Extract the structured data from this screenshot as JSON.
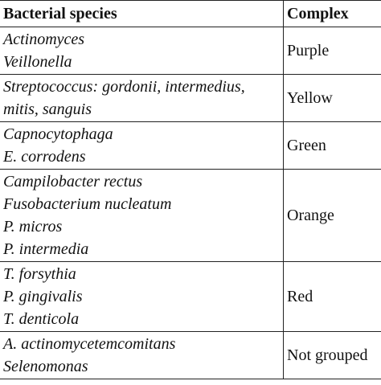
{
  "table": {
    "headers": {
      "species": "Bacterial species",
      "complex": "Complex"
    },
    "rows": [
      {
        "species": [
          "Actinomyces",
          "Veillonella"
        ],
        "complex": "Purple"
      },
      {
        "species": [
          "Streptococcus: gordonii, intermedius,",
          "mitis, sanguis"
        ],
        "complex": "Yellow"
      },
      {
        "species": [
          "Capnocytophaga",
          "E. corrodens"
        ],
        "complex": "Green"
      },
      {
        "species": [
          "Campilobacter rectus",
          "Fusobacterium nucleatum",
          "P. micros",
          "P. intermedia"
        ],
        "complex": "Orange"
      },
      {
        "species": [
          "T. forsythia",
          "P. gingivalis",
          "T. denticola"
        ],
        "complex": "Red"
      },
      {
        "species": [
          "A. actinomycetemcomitans",
          "Selenomonas"
        ],
        "complex": "Not grouped"
      }
    ]
  }
}
